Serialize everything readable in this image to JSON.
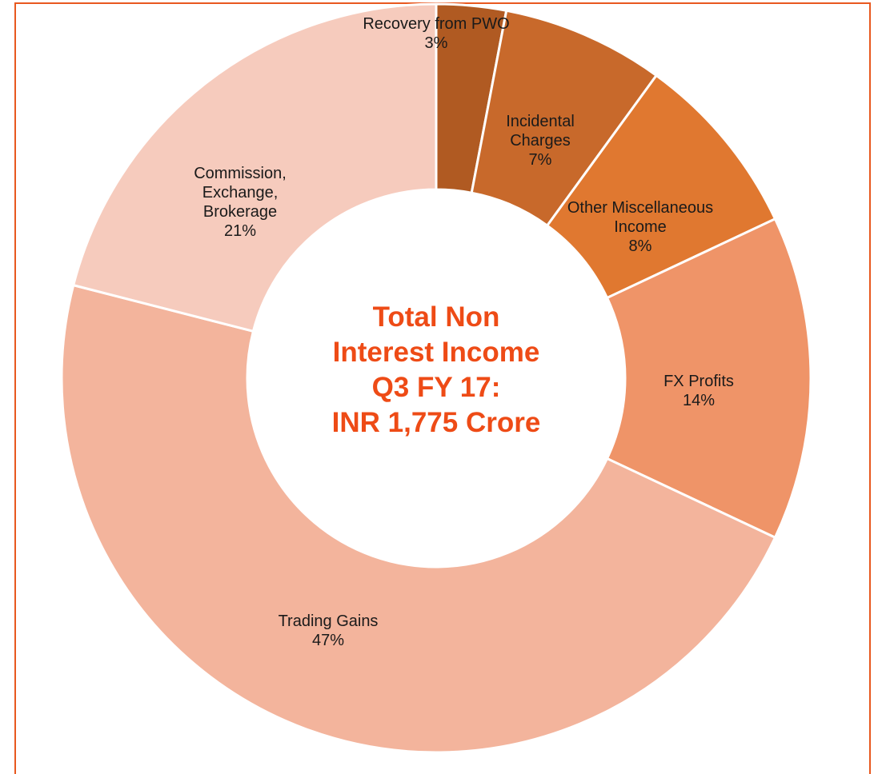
{
  "chart_data": {
    "type": "donut",
    "center_text": [
      "Total Non",
      "Interest Income",
      "Q3 FY 17:",
      "INR 1,775 Crore"
    ],
    "categories": [
      "Recovery from PWO",
      "Incidental Charges",
      "Other Miscellaneous Income",
      "FX Profits",
      "Trading Gains",
      "Commission, Exchange, Brokerage"
    ],
    "values": [
      3,
      7,
      8,
      14,
      47,
      21
    ],
    "value_labels": [
      "3%",
      "7%",
      "8%",
      "14%",
      "47%",
      "21%"
    ],
    "colors": [
      "#b05a22",
      "#c8692b",
      "#e07830",
      "#ef9468",
      "#f3b49c",
      "#f6cbbd"
    ]
  }
}
